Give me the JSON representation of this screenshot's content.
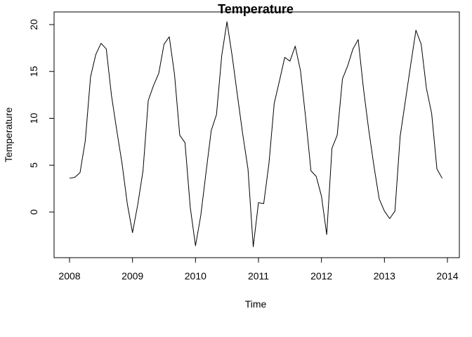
{
  "chart_data": {
    "type": "line",
    "title": "Temperature",
    "xlabel": "Time",
    "ylabel": "Temperature",
    "xlim": [
      2008,
      2014
    ],
    "ylim": [
      -4,
      21
    ],
    "x_ticks": [
      2008,
      2009,
      2010,
      2011,
      2012,
      2013,
      2014
    ],
    "y_ticks": [
      0,
      5,
      10,
      15,
      20
    ],
    "grid": false,
    "series": [
      {
        "color": "#000000",
        "start": 2008.0,
        "frequency": 12,
        "values": [
          3.6,
          3.7,
          4.2,
          7.6,
          14.4,
          16.8,
          18.0,
          17.4,
          12.4,
          8.7,
          5.2,
          0.9,
          -2.2,
          0.8,
          4.4,
          11.9,
          13.5,
          14.8,
          17.9,
          18.7,
          14.7,
          8.2,
          7.4,
          0.5,
          -3.6,
          -0.4,
          4.2,
          8.7,
          10.4,
          16.7,
          20.3,
          16.6,
          12.4,
          8.3,
          4.6,
          -3.7,
          1.0,
          0.9,
          5.2,
          11.6,
          14.0,
          16.5,
          16.1,
          17.7,
          15.1,
          10.0,
          4.4,
          3.8,
          1.7,
          -2.4,
          6.8,
          8.2,
          14.2,
          15.6,
          17.4,
          18.4,
          13.2,
          8.8,
          4.9,
          1.4,
          0.1,
          -0.7,
          0.1,
          8.1,
          11.9,
          15.7,
          19.4,
          17.9,
          13.2,
          10.5,
          4.6,
          3.6
        ]
      }
    ]
  }
}
